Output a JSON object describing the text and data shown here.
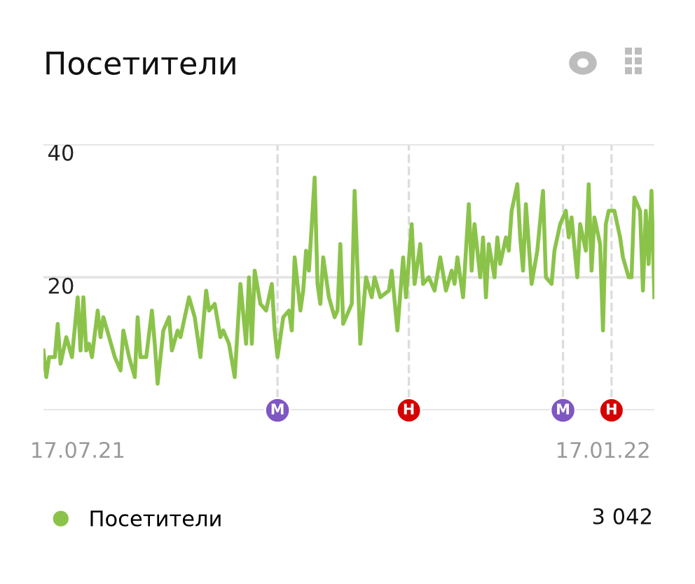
{
  "chart_data": {
    "type": "line",
    "title": "Посетители",
    "legend": "bottom",
    "grid": "y",
    "marker": "none",
    "line_style": "solid",
    "xlim": [
      "2021-07-05",
      "2022-02-04"
    ],
    "ylim": [
      0,
      40
    ],
    "xticks": [
      {
        "value": "2021-07-17",
        "label": "17.07.21"
      },
      {
        "value": "2022-01-17",
        "label": "17.01.22"
      }
    ],
    "yticks": [
      {
        "value": 0,
        "label": null
      },
      20,
      40
    ],
    "series": [
      {
        "name": "Посетители",
        "color": "#8bc34a",
        "x": [
          "2021-07-05",
          "2021-07-06",
          "2021-07-07",
          "2021-07-09",
          "2021-07-10",
          "2021-07-11",
          "2021-07-13",
          "2021-07-15",
          "2021-07-17",
          "2021-07-18",
          "2021-07-19",
          "2021-07-20",
          "2021-07-21",
          "2021-07-22",
          "2021-07-24",
          "2021-07-25",
          "2021-07-26",
          "2021-07-28",
          "2021-07-30",
          "2021-08-01",
          "2021-08-02",
          "2021-08-04",
          "2021-08-06",
          "2021-08-07",
          "2021-08-08",
          "2021-08-10",
          "2021-08-12",
          "2021-08-13",
          "2021-08-14",
          "2021-08-16",
          "2021-08-18",
          "2021-08-19",
          "2021-08-21",
          "2021-08-22",
          "2021-08-23",
          "2021-08-25",
          "2021-08-27",
          "2021-08-29",
          "2021-08-31",
          "2021-09-01",
          "2021-09-03",
          "2021-09-05",
          "2021-09-06",
          "2021-09-08",
          "2021-09-10",
          "2021-09-12",
          "2021-09-14",
          "2021-09-15",
          "2021-09-16",
          "2021-09-17",
          "2021-09-19",
          "2021-09-21",
          "2021-09-23",
          "2021-09-24",
          "2021-09-25",
          "2021-09-27",
          "2021-09-29",
          "2021-09-30",
          "2021-10-01",
          "2021-10-02",
          "2021-10-03",
          "2021-10-04",
          "2021-10-05",
          "2021-10-06",
          "2021-10-08",
          "2021-10-09",
          "2021-10-10",
          "2021-10-11",
          "2021-10-13",
          "2021-10-15",
          "2021-10-16",
          "2021-10-17",
          "2021-10-18",
          "2021-10-21",
          "2021-10-22",
          "2021-10-24",
          "2021-10-26",
          "2021-10-28",
          "2021-10-29",
          "2021-10-31",
          "2021-11-03",
          "2021-11-04",
          "2021-11-06",
          "2021-11-08",
          "2021-11-09",
          "2021-11-11",
          "2021-11-12",
          "2021-11-14",
          "2021-11-15",
          "2021-11-17",
          "2021-11-19",
          "2021-11-21",
          "2021-11-23",
          "2021-11-25",
          "2021-11-26",
          "2021-11-27",
          "2021-11-29",
          "2021-12-01",
          "2021-12-02",
          "2021-12-03",
          "2021-12-05",
          "2021-12-06",
          "2021-12-07",
          "2021-12-08",
          "2021-12-10",
          "2021-12-11",
          "2021-12-12",
          "2021-12-14",
          "2021-12-15",
          "2021-12-16",
          "2021-12-18",
          "2021-12-19",
          "2021-12-20",
          "2021-12-21",
          "2021-12-23",
          "2021-12-25",
          "2021-12-27",
          "2021-12-28",
          "2021-12-30",
          "2021-12-31",
          "2022-01-02",
          "2022-01-04",
          "2022-01-05",
          "2022-01-06",
          "2022-01-08",
          "2022-01-09",
          "2022-01-11",
          "2022-01-12",
          "2022-01-13",
          "2022-01-14",
          "2022-01-16",
          "2022-01-17",
          "2022-01-18",
          "2022-01-19",
          "2022-01-21",
          "2022-01-23",
          "2022-01-24",
          "2022-01-26",
          "2022-01-27",
          "2022-01-28",
          "2022-01-30",
          "2022-01-31",
          "2022-02-01",
          "2022-02-02",
          "2022-02-03",
          "2022-02-04"
        ],
        "values": [
          9,
          5,
          8,
          8,
          13,
          7,
          11,
          8,
          17,
          9,
          17,
          9,
          10,
          8,
          15,
          11,
          14,
          11,
          8,
          6,
          12,
          8,
          5,
          14,
          8,
          8,
          15,
          10,
          4,
          12,
          14,
          9,
          12,
          11,
          13,
          17,
          14,
          8,
          18,
          15,
          16,
          11,
          12,
          10,
          5,
          19,
          10,
          20,
          10,
          21,
          16,
          15,
          19,
          12,
          8,
          14,
          15,
          12,
          23,
          19,
          15,
          18,
          24,
          21,
          35,
          19,
          16,
          23,
          17,
          14,
          15,
          25,
          13,
          16,
          33,
          10,
          20,
          17,
          20,
          17,
          18,
          21,
          12,
          23,
          17,
          28,
          19,
          25,
          19,
          20,
          18,
          23,
          18,
          21,
          19,
          23,
          17,
          31,
          21,
          28,
          20,
          26,
          17,
          25,
          20,
          26,
          22,
          26,
          24,
          30,
          34,
          26,
          21,
          31,
          19,
          24,
          33,
          20,
          19,
          24,
          28,
          30,
          26,
          29,
          20,
          28,
          24,
          34,
          21,
          29,
          25,
          12,
          28,
          30,
          30,
          26,
          23,
          20,
          20,
          32,
          30,
          18,
          30,
          22,
          33,
          17
        ]
      }
    ],
    "ref_lines": [
      {
        "axis": "x",
        "value": "2021-09-25",
        "label": "М",
        "color": "#dddddd",
        "line_style": "dashed"
      },
      {
        "axis": "x",
        "value": "2021-11-10",
        "label": "Н",
        "color": "#dddddd",
        "line_style": "dashed"
      },
      {
        "axis": "x",
        "value": "2022-01-03",
        "label": "М",
        "color": "#dddddd",
        "line_style": "dashed"
      },
      {
        "axis": "x",
        "value": "2022-01-20",
        "label": "Н",
        "color": "#dddddd",
        "line_style": "dashed"
      }
    ],
    "annotations": [
      "3 042"
    ]
  }
}
